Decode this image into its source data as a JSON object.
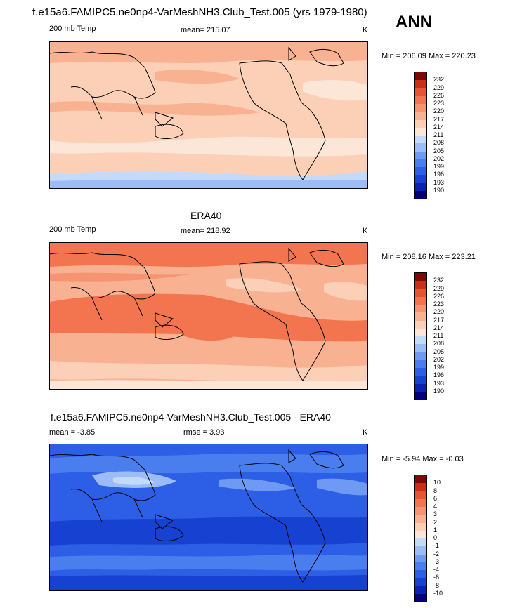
{
  "page_title": "f.e15a6.FAMIPC5.ne0np4-VarMeshNH3.Club_Test.005 (yrs 1979-1980)",
  "season": "ANN",
  "panels": [
    {
      "title": "",
      "variable": "200 mb Temp",
      "stat_text": "mean= 215.07",
      "stat2_text": "",
      "units": "K",
      "minmax_text": "Min = 206.09 Max = 220.23"
    },
    {
      "title": "ERA40",
      "variable": "200 mb Temp",
      "stat_text": "mean= 218.92",
      "stat2_text": "",
      "units": "K",
      "minmax_text": "Min = 208.16 Max = 223.21"
    },
    {
      "title": "f.e15a6.FAMIPC5.ne0np4-VarMeshNH3.Club_Test.005 - ERA40",
      "variable": "",
      "stat_text": "mean =  -3.85",
      "stat2_text": "rmse =   3.93",
      "units": "K",
      "minmax_text": "Min =  -5.94 Max =  -0.03"
    }
  ],
  "colors": {
    "abs_scale": [
      "#04007c",
      "#0a22b0",
      "#1741d0",
      "#2d5fe6",
      "#4a7eef",
      "#6f9af4",
      "#9bbcf7",
      "#c4daf9",
      "#fbe6d8",
      "#fbd0b7",
      "#f8b292",
      "#f69370",
      "#f2754f",
      "#e45530",
      "#c92f14",
      "#7d0a02"
    ],
    "diff_scale": [
      "#04007c",
      "#0a22b0",
      "#1741d0",
      "#2d5fe6",
      "#4a7eef",
      "#6f9af4",
      "#9bbcf7",
      "#c4daf9",
      "#fbe6d8",
      "#fbd0b7",
      "#f8b292",
      "#f69370",
      "#f2754f",
      "#e45530",
      "#c92f14",
      "#7d0a02"
    ]
  },
  "chart_data": [
    {
      "type": "heatmap",
      "title": "f.e15a6.FAMIPC5.ne0np4-VarMeshNH3.Club_Test.005 (yrs 1979-1980)",
      "variable": "200 mb Temp",
      "units": "K",
      "mean": 215.07,
      "min": 206.09,
      "max": 220.23,
      "colorbar_levels": [
        "232",
        "229",
        "226",
        "223",
        "220",
        "217",
        "214",
        "211",
        "208",
        "205",
        "202",
        "199",
        "196",
        "193",
        "190"
      ],
      "zonal_profile": {
        "description": "approximate zonal-mean temperature by latitude band (N to S)",
        "latitude": [
          75,
          55,
          35,
          15,
          0,
          -15,
          -35,
          -55,
          -75
        ],
        "value": [
          218,
          216,
          214,
          216,
          216,
          216,
          215,
          211,
          206
        ]
      }
    },
    {
      "type": "heatmap",
      "title": "ERA40",
      "variable": "200 mb Temp",
      "units": "K",
      "mean": 218.92,
      "min": 208.16,
      "max": 223.21,
      "colorbar_levels": [
        "232",
        "229",
        "226",
        "223",
        "220",
        "217",
        "214",
        "211",
        "208",
        "205",
        "202",
        "199",
        "196",
        "193",
        "190"
      ],
      "zonal_profile": {
        "description": "approximate zonal-mean temperature by latitude band (N to S)",
        "latitude": [
          75,
          55,
          35,
          15,
          0,
          -15,
          -35,
          -55,
          -75
        ],
        "value": [
          221,
          219,
          216,
          219,
          220,
          220,
          218,
          215,
          212
        ]
      }
    },
    {
      "type": "heatmap",
      "title": "f.e15a6.FAMIPC5.ne0np4-VarMeshNH3.Club_Test.005 - ERA40",
      "units": "K",
      "mean": -3.85,
      "rmse": 3.93,
      "min": -5.94,
      "max": -0.03,
      "colorbar_levels": [
        "10",
        "8",
        "6",
        "4",
        "3",
        "2",
        "1",
        "0",
        "-1",
        "-2",
        "-3",
        "-4",
        "-6",
        "-8",
        "-10"
      ],
      "zonal_profile": {
        "description": "approximate zonal-mean difference by latitude band (N to S)",
        "latitude": [
          75,
          55,
          35,
          15,
          0,
          -15,
          -35,
          -55,
          -75
        ],
        "value": [
          -3,
          -2,
          -2,
          -4,
          -4,
          -4,
          -3,
          -4,
          -5
        ]
      }
    }
  ]
}
